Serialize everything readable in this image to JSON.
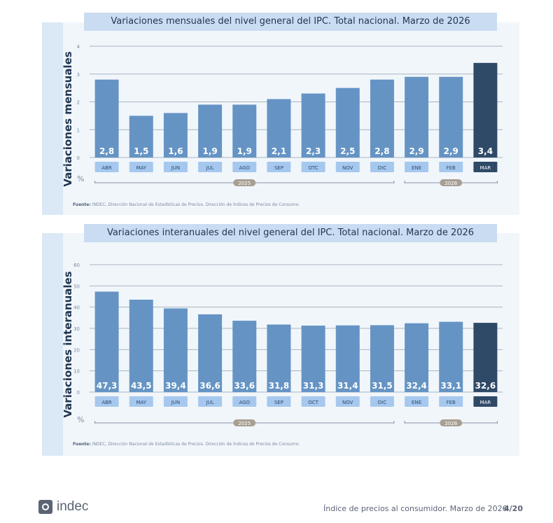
{
  "footer": {
    "logo_text": "indec",
    "report_title": "Índice de precios al consumidor. Marzo de 2026",
    "page": "4/20"
  },
  "chart_data": [
    {
      "type": "bar",
      "title": "Variaciones mensuales del nivel general del IPC. Total nacional. Marzo de 2026",
      "ylabel": "Variaciones mensuales",
      "unit": "%",
      "ylim": [
        0,
        4
      ],
      "yticks": [
        0,
        1,
        2,
        3,
        4
      ],
      "grid": true,
      "categories": [
        "ABR",
        "MAY",
        "JUN",
        "JUL",
        "AGO",
        "SEP",
        "OTC",
        "NOV",
        "DIC",
        "ENE",
        "FEB",
        "MAR"
      ],
      "values": [
        2.8,
        1.5,
        1.6,
        1.9,
        1.9,
        2.1,
        2.3,
        2.5,
        2.8,
        2.9,
        2.9,
        3.4
      ],
      "value_labels": [
        "2,8",
        "1,5",
        "1,6",
        "1,9",
        "1,9",
        "2,1",
        "2,3",
        "2,5",
        "2,8",
        "2,9",
        "2,9",
        "3,4"
      ],
      "highlight_index": 11,
      "year_groups": [
        {
          "label": "2025",
          "from": 0,
          "to": 8
        },
        {
          "label": "2026",
          "from": 9,
          "to": 11
        }
      ],
      "colors": {
        "bar": "#6594c4",
        "highlight": "#2f4a67",
        "cat_box": "#a6c8ee",
        "cat_box_highlight": "#2f4a67"
      },
      "source": {
        "label": "Fuente:",
        "text": "INDEC, Dirección Nacional de Estadísticas de Precios. Dirección de Índices de Precios de Consumo."
      }
    },
    {
      "type": "bar",
      "title": "Variaciones interanuales del nivel general del IPC. Total nacional. Marzo de 2026",
      "ylabel": "Variaciones interanuales",
      "unit": "%",
      "ylim": [
        0,
        60
      ],
      "yticks": [
        0,
        10,
        20,
        30,
        40,
        50,
        60
      ],
      "grid": true,
      "categories": [
        "ABR",
        "MAY",
        "JUN",
        "JUL",
        "AGO",
        "SEP",
        "OCT",
        "NOV",
        "DIC",
        "ENE",
        "FEB",
        "MAR"
      ],
      "values": [
        47.3,
        43.5,
        39.4,
        36.6,
        33.6,
        31.8,
        31.3,
        31.4,
        31.5,
        32.4,
        33.1,
        32.6
      ],
      "value_labels": [
        "47,3",
        "43,5",
        "39,4",
        "36,6",
        "33,6",
        "31,8",
        "31,3",
        "31,4",
        "31,5",
        "32,4",
        "33,1",
        "32,6"
      ],
      "highlight_index": 11,
      "year_groups": [
        {
          "label": "2025",
          "from": 0,
          "to": 8
        },
        {
          "label": "2026",
          "from": 9,
          "to": 11
        }
      ],
      "colors": {
        "bar": "#6594c4",
        "highlight": "#2f4a67",
        "cat_box": "#a6c8ee",
        "cat_box_highlight": "#2f4a67"
      },
      "source": {
        "label": "Fuente:",
        "text": "INDEC, Dirección Nacional de Estadísticas de Precios. Dirección de Índices de Precios de Consumo."
      }
    }
  ]
}
